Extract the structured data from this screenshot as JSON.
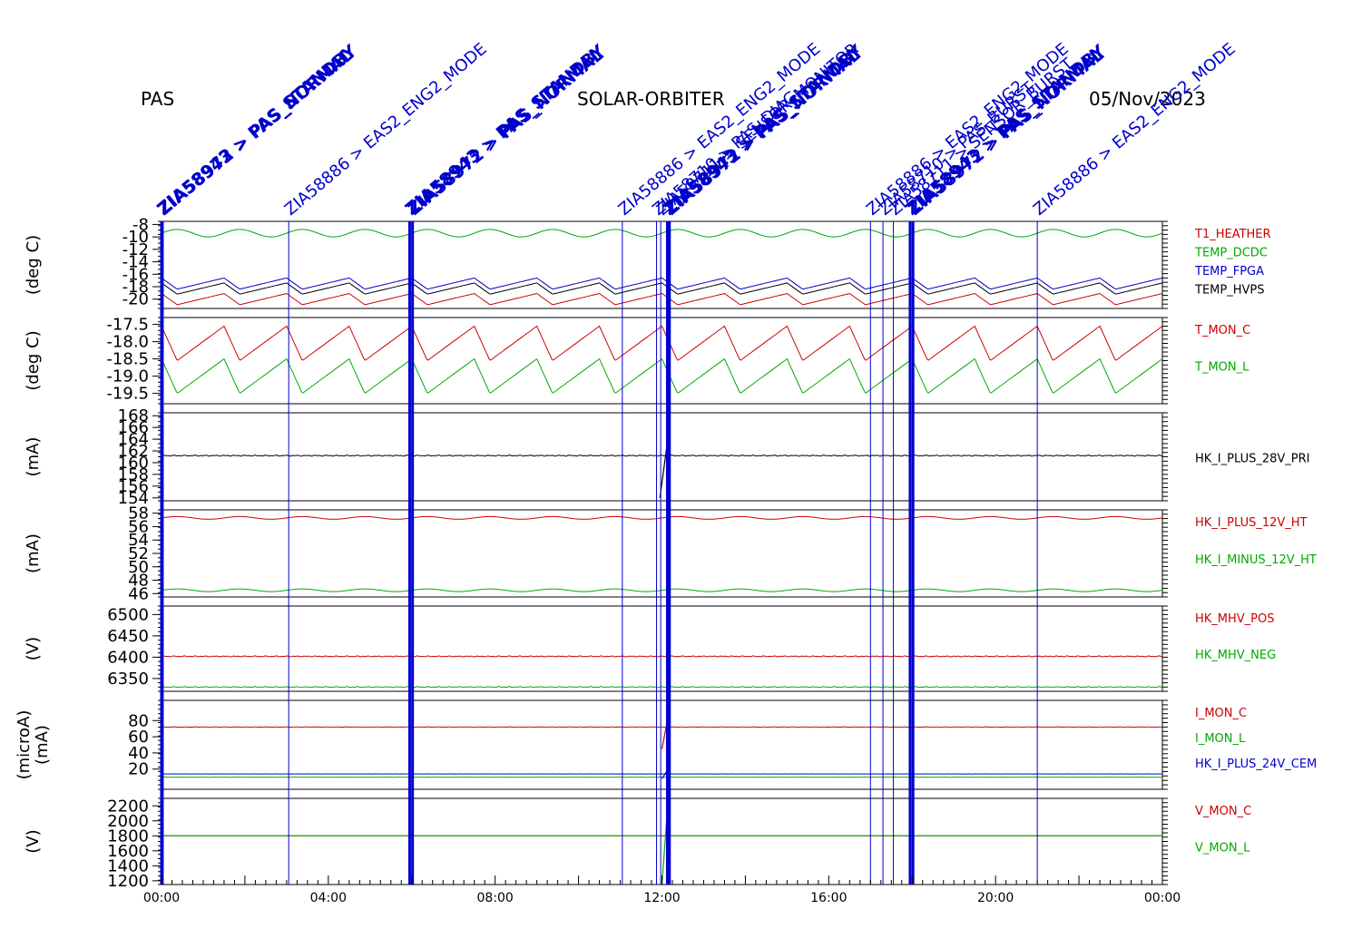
{
  "header": {
    "left": "PAS",
    "center": "SOLAR-ORBITER",
    "right": "05/Nov/2023"
  },
  "colors": {
    "black": "#000000",
    "red": "#cc0000",
    "green": "#00aa00",
    "blue": "#0000cc"
  },
  "chart_data": {
    "type": "line",
    "x_axis": {
      "ticks": [
        "00:00",
        "04:00",
        "08:00",
        "12:00",
        "16:00",
        "20:00",
        "00:00"
      ],
      "range_hours": [
        0,
        24
      ]
    },
    "events": [
      {
        "t": 0.0,
        "text": "ZIA58943 > PAS_STANDBY",
        "bold": true
      },
      {
        "t": 0.02,
        "text": "ZIA58972 > PAS_NORMAL",
        "bold": true
      },
      {
        "t": 3.05,
        "text": "ZIA58886 > EAS2_ENG2_MODE",
        "bold": false
      },
      {
        "t": 5.95,
        "text": "ZIA58943 > PAS_STANDBY",
        "bold": true
      },
      {
        "t": 6.02,
        "text": "ZIA58972 > PAS_NORMAL",
        "bold": true
      },
      {
        "t": 11.05,
        "text": "ZIA58886 > EAS2_ENG2_MODE",
        "bold": false
      },
      {
        "t": 11.87,
        "text": "ZIA58710 > PAS_DIAG",
        "bold": false
      },
      {
        "t": 11.97,
        "text": "ZIA58711 > SENSOR_MONITOR",
        "bold": false
      },
      {
        "t": 12.13,
        "text": "ZIA58943 > PAS_STANDBY",
        "bold": true
      },
      {
        "t": 12.18,
        "text": "ZIA58972 > PAS_NORMAL",
        "bold": true
      },
      {
        "t": 17.0,
        "text": "ZIA58886 > EAS2_ENG2_MODE",
        "bold": false
      },
      {
        "t": 17.3,
        "text": "ZIA58710 > PAS_BURST",
        "bold": false
      },
      {
        "t": 17.55,
        "text": "ZIA58711 > SENSOR_BURST",
        "bold": false
      },
      {
        "t": 17.95,
        "text": "ZIA58943 > PAS_STANDBY",
        "bold": true
      },
      {
        "t": 18.02,
        "text": "ZIA58972 > PAS_NORMAL",
        "bold": true
      },
      {
        "t": 21.0,
        "text": "ZIA58886 > EAS2_ENG2_MODE",
        "bold": false
      }
    ],
    "panels": [
      {
        "ylabel": [
          "(deg C)"
        ],
        "ylim": [
          -21.5,
          -7.5
        ],
        "ticks": [
          -8,
          -10,
          -12,
          -14,
          -16,
          -18,
          -20
        ],
        "tick_labels": [
          "-8",
          "-10",
          "-12",
          "-14",
          "-16",
          "-18",
          "-20"
        ],
        "series": [
          {
            "name": "T1_HEATHER",
            "color": "red",
            "kind": "saw",
            "center": -20.0,
            "amp": 0.9,
            "period": 1.5
          },
          {
            "name": "TEMP_DCDC",
            "color": "green",
            "kind": "sine",
            "center": -9.4,
            "amp": 0.6,
            "period": 1.5
          },
          {
            "name": "TEMP_FPGA",
            "color": "blue",
            "kind": "saw",
            "center": -17.5,
            "amp": 0.9,
            "period": 1.5
          },
          {
            "name": "TEMP_HVPS",
            "color": "black",
            "kind": "saw",
            "center": -18.3,
            "amp": 0.9,
            "period": 1.5
          }
        ]
      },
      {
        "ylabel": [
          "(deg C)"
        ],
        "ylim": [
          -19.8,
          -17.3
        ],
        "ticks": [
          -17.5,
          -18.0,
          -18.5,
          -19.0,
          -19.5
        ],
        "tick_labels": [
          "-17.5",
          "-18.0",
          "-18.5",
          "-19.0",
          "-19.5"
        ],
        "series": [
          {
            "name": "T_MON_C",
            "color": "red",
            "kind": "saw",
            "center": -18.05,
            "amp": 0.5,
            "period": 1.5
          },
          {
            "name": "T_MON_L",
            "color": "green",
            "kind": "saw",
            "center": -19.0,
            "amp": 0.5,
            "period": 1.5
          }
        ]
      },
      {
        "ylabel": [
          "(mA)"
        ],
        "ylim": [
          153.5,
          168.5
        ],
        "ticks": [
          168,
          166,
          164,
          162,
          160,
          158,
          156,
          154
        ],
        "tick_labels": [
          "168",
          "166",
          "164",
          "162",
          "160",
          "158",
          "156",
          "154"
        ],
        "series": [
          {
            "name": "HK_I_PLUS_28V_PRI",
            "color": "black",
            "kind": "flat",
            "center": 161.2,
            "amp": 0.1,
            "period": 0.1,
            "spike": [
              [
                11.95,
                154.0
              ],
              [
                12.15,
                164.5
              ]
            ]
          }
        ]
      },
      {
        "ylabel": [
          "(mA)"
        ],
        "ylim": [
          45.5,
          58.5
        ],
        "ticks": [
          58,
          56,
          54,
          52,
          50,
          48,
          46
        ],
        "tick_labels": [
          "58",
          "56",
          "54",
          "52",
          "50",
          "48",
          "46"
        ],
        "series": [
          {
            "name": "HK_I_PLUS_12V_HT",
            "color": "red",
            "kind": "sine",
            "center": 57.3,
            "amp": 0.2,
            "period": 1.5
          },
          {
            "name": "HK_I_MINUS_12V_HT",
            "color": "green",
            "kind": "sine",
            "center": 46.5,
            "amp": 0.2,
            "period": 1.5
          }
        ]
      },
      {
        "ylabel": [
          "(V)"
        ],
        "ylim": [
          6320,
          6520
        ],
        "ticks": [
          6500,
          6450,
          6400,
          6350
        ],
        "tick_labels": [
          "6500",
          "6450",
          "6400",
          "6350"
        ],
        "series": [
          {
            "name": "HK_MHV_POS",
            "color": "red",
            "kind": "flat",
            "center": 6402,
            "amp": 1.2,
            "period": 0.1
          },
          {
            "name": "HK_MHV_NEG",
            "color": "green",
            "kind": "flat",
            "center": 6330,
            "amp": 1.2,
            "period": 0.1
          }
        ]
      },
      {
        "ylabel": [
          "(microA)",
          "(mA)"
        ],
        "ylim": [
          -5,
          105
        ],
        "ticks": [
          80,
          60,
          40,
          20
        ],
        "tick_labels": [
          "80",
          "60",
          "40",
          "20"
        ],
        "series": [
          {
            "name": "I_MON_C",
            "color": "red",
            "kind": "flat",
            "center": 72,
            "amp": 0.3,
            "period": 0.1,
            "spike": [
              [
                12.0,
                45
              ],
              [
                12.15,
                85
              ]
            ]
          },
          {
            "name": "I_MON_L",
            "color": "green",
            "kind": "flat",
            "center": 10,
            "amp": 0.1,
            "period": 0.1
          },
          {
            "name": "HK_I_PLUS_24V_CEM",
            "color": "blue",
            "kind": "flat",
            "center": 14,
            "amp": 0.1,
            "period": 0.1,
            "spike": [
              [
                12.0,
                8
              ],
              [
                12.15,
                20
              ]
            ]
          }
        ]
      },
      {
        "ylabel": [
          "(V)"
        ],
        "ylim": [
          1150,
          2300
        ],
        "ticks": [
          2200,
          2000,
          1800,
          1600,
          1400,
          1200
        ],
        "tick_labels": [
          "2200",
          "2000",
          "1800",
          "1600",
          "1400",
          "1200"
        ],
        "series": [
          {
            "name": "V_MON_C",
            "color": "red",
            "kind": "flat",
            "center": 1800,
            "amp": 0,
            "period": 0.1
          },
          {
            "name": "V_MON_L",
            "color": "green",
            "kind": "flat",
            "center": 1800,
            "amp": 0.5,
            "period": 0.1,
            "spike": [
              [
                12.0,
                1150
              ],
              [
                12.15,
                2300
              ]
            ]
          }
        ]
      }
    ]
  }
}
